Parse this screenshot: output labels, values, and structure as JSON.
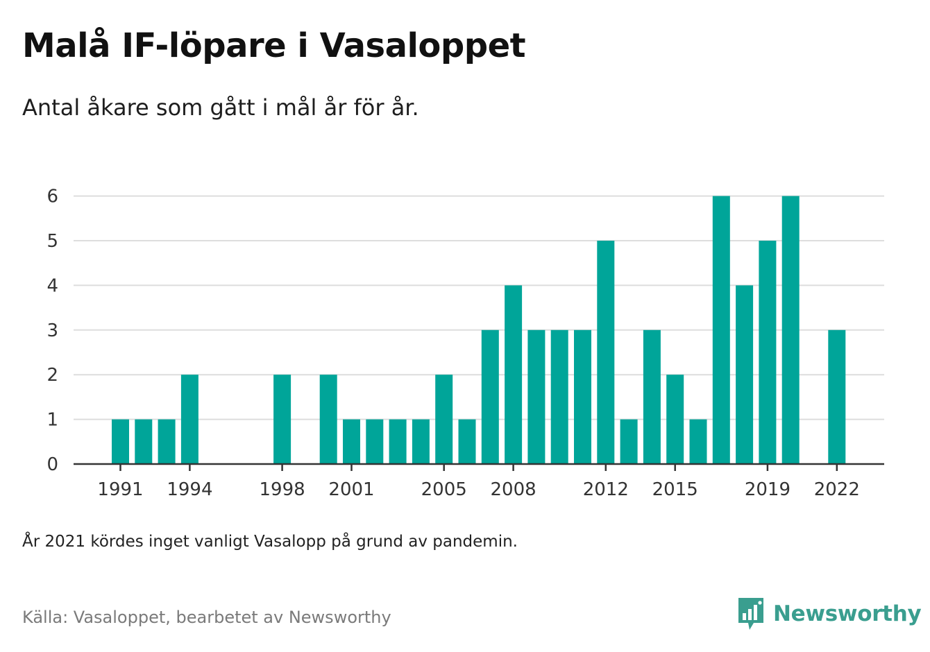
{
  "title": "Malå IF-löpare i Vasaloppet",
  "subtitle": "Antal åkare som gått i mål år för år.",
  "note": "År 2021 kördes inget vanligt Vasalopp på grund av pandemin.",
  "source": "Källa: Vasaloppet, bearbetet av Newsworthy",
  "brand": {
    "name": "Newsworthy",
    "logo_icon": "bar-chart-speech-bubble-icon",
    "color": "#3a9e8f"
  },
  "colors": {
    "bar": "#00a599",
    "grid": "#dddddd",
    "axis": "#333333"
  },
  "chart_data": {
    "type": "bar",
    "title": "",
    "xlabel": "",
    "ylabel": "",
    "x": [
      1991,
      1992,
      1993,
      1994,
      1995,
      1996,
      1997,
      1998,
      1999,
      2000,
      2001,
      2002,
      2003,
      2004,
      2005,
      2006,
      2007,
      2008,
      2009,
      2010,
      2011,
      2012,
      2013,
      2014,
      2015,
      2016,
      2017,
      2018,
      2019,
      2020,
      2021,
      2022
    ],
    "values": [
      1,
      1,
      1,
      2,
      0,
      0,
      0,
      2,
      0,
      2,
      1,
      1,
      1,
      1,
      2,
      1,
      3,
      4,
      3,
      3,
      3,
      5,
      1,
      3,
      2,
      1,
      6,
      4,
      5,
      6,
      0,
      3
    ],
    "x_tick_labels": [
      "1991",
      "1994",
      "1998",
      "2001",
      "2005",
      "2008",
      "2012",
      "2015",
      "2019",
      "2022"
    ],
    "y_ticks": [
      "0",
      "1",
      "2",
      "3",
      "4",
      "5",
      "6"
    ],
    "ylim": [
      0,
      6
    ],
    "grid": true,
    "legend": "none"
  }
}
